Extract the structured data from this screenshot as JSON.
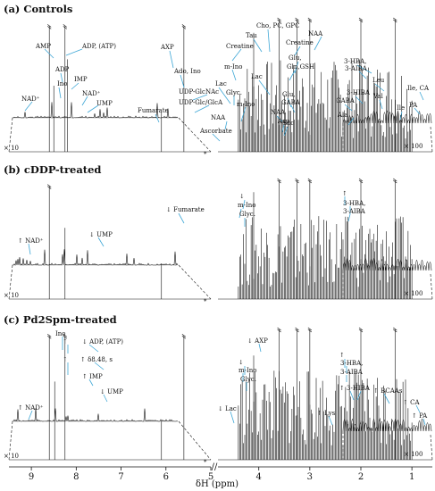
{
  "chart_data": {
    "type": "line",
    "title": "",
    "xlabel": "δH (ppm)",
    "ylabel": "",
    "x_axis": {
      "reversed": true,
      "ticks": [
        "9",
        "8",
        "7",
        "6",
        "5",
        "4",
        "3",
        "2",
        "1"
      ],
      "break_label": "*"
    },
    "series_color": "#111111",
    "annotation_color": "#3fa7d6",
    "panels": [
      {
        "title": "(a) Controls",
        "inset_multipliers": [
          "× 10",
          "× 100"
        ],
        "peaks": [
          {
            "ppm": 8.6,
            "rel": 0.95
          },
          {
            "ppm": 8.5,
            "rel": 0.5
          },
          {
            "ppm": 8.25,
            "rel": 0.95
          },
          {
            "ppm": 8.2,
            "rel": 0.7
          },
          {
            "ppm": 6.1,
            "rel": 0.3
          },
          {
            "ppm": 5.6,
            "rel": 0.95
          },
          {
            "ppm": 4.1,
            "rel": 0.9
          },
          {
            "ppm": 3.6,
            "rel": 1.0
          },
          {
            "ppm": 3.25,
            "rel": 1.0
          },
          {
            "ppm": 3.0,
            "rel": 1.0
          },
          {
            "ppm": 2.0,
            "rel": 1.0
          },
          {
            "ppm": 1.33,
            "rel": 1.0
          }
        ],
        "labels": [
          {
            "text": "AMP"
          },
          {
            "text": "ADP, (ATP)"
          },
          {
            "text": "ADP"
          },
          {
            "text": "Ino"
          },
          {
            "text": "IMP"
          },
          {
            "text": "NAD⁺"
          },
          {
            "text": "NAD⁺"
          },
          {
            "text": "UMP"
          },
          {
            "text": "Fumarate"
          },
          {
            "text": "AXP"
          },
          {
            "text": "Ado, Ino"
          },
          {
            "text": "UDP-GlcNAc"
          },
          {
            "text": "UDP-Glc/GlcA"
          },
          {
            "text": "Creatine"
          },
          {
            "text": "Tau"
          },
          {
            "text": "Cho, PC, GPC"
          },
          {
            "text": "Creatine"
          },
          {
            "text": "NAA"
          },
          {
            "text": "Lac"
          },
          {
            "text": "m-Ino"
          },
          {
            "text": "Glyc."
          },
          {
            "text": "m-Ino"
          },
          {
            "text": "Lac"
          },
          {
            "text": "Glu,"
          },
          {
            "text": "Gln,GSH"
          },
          {
            "text": "Glu,"
          },
          {
            "text": "GABA"
          },
          {
            "text": "Suc"
          },
          {
            "text": "NAA"
          },
          {
            "text": "Asp"
          },
          {
            "text": "NAA"
          },
          {
            "text": "Ascorbate"
          },
          {
            "text": "GABA"
          },
          {
            "text": "Ala"
          },
          {
            "text": "3-HBA,"
          },
          {
            "text": "3-AIBA"
          },
          {
            "text": "3-HIBA"
          },
          {
            "text": "Leu"
          },
          {
            "text": "Val"
          },
          {
            "text": "Ile"
          },
          {
            "text": "Ile, CA"
          },
          {
            "text": "PA"
          }
        ]
      },
      {
        "title": "(b) cDDP-treated",
        "inset_multipliers": [
          "× 10",
          "× 100"
        ],
        "peaks": [
          {
            "ppm": 8.6,
            "rel": 0.95
          },
          {
            "ppm": 8.25,
            "rel": 0.6
          },
          {
            "ppm": 6.1,
            "rel": 0.3
          },
          {
            "ppm": 4.1,
            "rel": 0.9
          },
          {
            "ppm": 3.6,
            "rel": 1.0
          },
          {
            "ppm": 3.25,
            "rel": 1.0
          },
          {
            "ppm": 3.0,
            "rel": 1.0
          },
          {
            "ppm": 2.0,
            "rel": 1.0
          },
          {
            "ppm": 1.33,
            "rel": 1.0
          }
        ],
        "labels": [
          {
            "text": "↑ NAD⁺"
          },
          {
            "text": "↓ UMP"
          },
          {
            "text": "↓ Fumarate"
          },
          {
            "text": "↓"
          },
          {
            "text": "m-Ino"
          },
          {
            "text": "Glyc."
          },
          {
            "text": "↑"
          },
          {
            "text": "3-HBA,"
          },
          {
            "text": "3-AIBA"
          }
        ]
      },
      {
        "title": "(c) Pd2Spm-treated",
        "inset_multipliers": [
          "× 10",
          "× 100"
        ],
        "peaks": [
          {
            "ppm": 8.6,
            "rel": 0.95
          },
          {
            "ppm": 8.48,
            "rel": 0.6
          },
          {
            "ppm": 8.25,
            "rel": 0.95
          },
          {
            "ppm": 6.1,
            "rel": 0.3
          },
          {
            "ppm": 5.6,
            "rel": 0.95
          },
          {
            "ppm": 4.1,
            "rel": 0.8
          },
          {
            "ppm": 3.6,
            "rel": 1.0
          },
          {
            "ppm": 3.25,
            "rel": 1.0
          },
          {
            "ppm": 3.0,
            "rel": 1.0
          },
          {
            "ppm": 2.0,
            "rel": 1.0
          },
          {
            "ppm": 1.33,
            "rel": 1.0
          }
        ],
        "labels": [
          {
            "text": "Ino"
          },
          {
            "text": "↑"
          },
          {
            "text": "↓ ADP, (ATP)"
          },
          {
            "text": "↑"
          },
          {
            "text": "↑ δ8.48, s"
          },
          {
            "text": "↑ IMP"
          },
          {
            "text": "↓ UMP"
          },
          {
            "text": "↑ NAD⁺"
          },
          {
            "text": "↓ AXP"
          },
          {
            "text": "↓"
          },
          {
            "text": "m-Ino"
          },
          {
            "text": "Glyc."
          },
          {
            "text": "↓ Lac"
          },
          {
            "text": "↑ Lys"
          },
          {
            "text": "↑"
          },
          {
            "text": "3-HBA,"
          },
          {
            "text": "3-AIBA"
          },
          {
            "text": "↑"
          },
          {
            "text": "3-HIBA"
          },
          {
            "text": "↑ BCAAs"
          },
          {
            "text": "↑ CA"
          },
          {
            "text": "↑ PA"
          }
        ]
      }
    ]
  }
}
